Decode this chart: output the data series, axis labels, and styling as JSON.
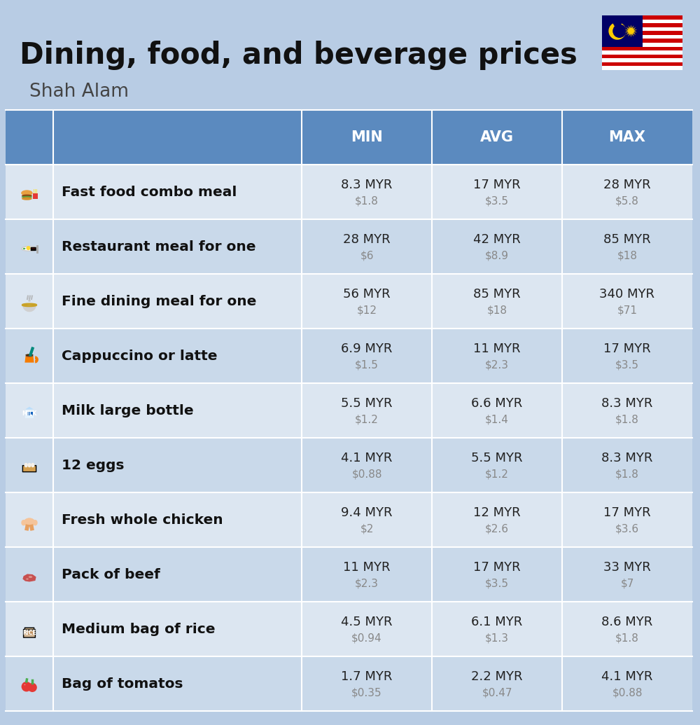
{
  "title": "Dining, food, and beverage prices",
  "subtitle": "Shah Alam",
  "bg_color": "#b8cce4",
  "header_bg": "#5b8abf",
  "header_text_color": "#ffffff",
  "row_colors": [
    "#dce6f1",
    "#c9d9ea"
  ],
  "col_headers": [
    "MIN",
    "AVG",
    "MAX"
  ],
  "items": [
    {
      "label": "Fast food combo meal",
      "min_myr": "8.3 MYR",
      "min_usd": "$1.8",
      "avg_myr": "17 MYR",
      "avg_usd": "$3.5",
      "max_myr": "28 MYR",
      "max_usd": "$5.8"
    },
    {
      "label": "Restaurant meal for one",
      "min_myr": "28 MYR",
      "min_usd": "$6",
      "avg_myr": "42 MYR",
      "avg_usd": "$8.9",
      "max_myr": "85 MYR",
      "max_usd": "$18"
    },
    {
      "label": "Fine dining meal for one",
      "min_myr": "56 MYR",
      "min_usd": "$12",
      "avg_myr": "85 MYR",
      "avg_usd": "$18",
      "max_myr": "340 MYR",
      "max_usd": "$71"
    },
    {
      "label": "Cappuccino or latte",
      "min_myr": "6.9 MYR",
      "min_usd": "$1.5",
      "avg_myr": "11 MYR",
      "avg_usd": "$2.3",
      "max_myr": "17 MYR",
      "max_usd": "$3.5"
    },
    {
      "label": "Milk large bottle",
      "min_myr": "5.5 MYR",
      "min_usd": "$1.2",
      "avg_myr": "6.6 MYR",
      "avg_usd": "$1.4",
      "max_myr": "8.3 MYR",
      "max_usd": "$1.8"
    },
    {
      "label": "12 eggs",
      "min_myr": "4.1 MYR",
      "min_usd": "$0.88",
      "avg_myr": "5.5 MYR",
      "avg_usd": "$1.2",
      "max_myr": "8.3 MYR",
      "max_usd": "$1.8"
    },
    {
      "label": "Fresh whole chicken",
      "min_myr": "9.4 MYR",
      "min_usd": "$2",
      "avg_myr": "12 MYR",
      "avg_usd": "$2.6",
      "max_myr": "17 MYR",
      "max_usd": "$3.6"
    },
    {
      "label": "Pack of beef",
      "min_myr": "11 MYR",
      "min_usd": "$2.3",
      "avg_myr": "17 MYR",
      "avg_usd": "$3.5",
      "max_myr": "33 MYR",
      "max_usd": "$7"
    },
    {
      "label": "Medium bag of rice",
      "min_myr": "4.5 MYR",
      "min_usd": "$0.94",
      "avg_myr": "6.1 MYR",
      "avg_usd": "$1.3",
      "max_myr": "8.6 MYR",
      "max_usd": "$1.8"
    },
    {
      "label": "Bag of tomatos",
      "min_myr": "1.7 MYR",
      "min_usd": "$0.35",
      "avg_myr": "2.2 MYR",
      "avg_usd": "$0.47",
      "max_myr": "4.1 MYR",
      "max_usd": "$0.88"
    }
  ]
}
